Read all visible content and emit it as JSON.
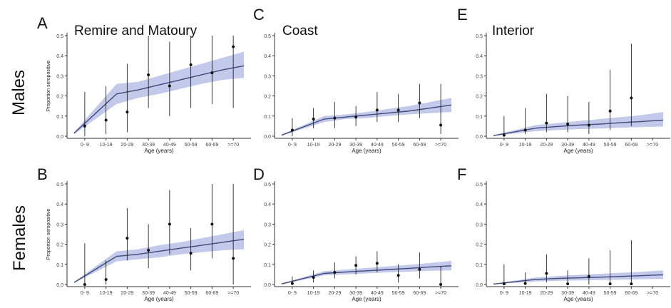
{
  "row_labels": [
    "Males",
    "Females"
  ],
  "y_axis_label": "Proportion seropositive",
  "x_axis_label": "Age (years)",
  "x_ticks": [
    "0- 9",
    "10-19",
    "20-29",
    "30-39",
    "40-49",
    "50-59",
    "60-69",
    ">=70"
  ],
  "y_ticks": [
    "0.0",
    "0.1",
    "0.2",
    "0.3",
    "0.4",
    "0.5"
  ],
  "colors": {
    "band": "#b8bfe6",
    "line": "#3f4a7a",
    "points": "#111111",
    "axis": "#333333"
  },
  "chart_data": [
    {
      "type": "line",
      "panel": "A",
      "title": "Remire and Matoury",
      "sex": "Males",
      "xlabel": "Age (years)",
      "ylabel": "Proportion seropositive",
      "ylim": [
        0,
        0.5
      ],
      "categories": [
        "0- 9",
        "10-19",
        "20-29",
        "30-39",
        "40-49",
        "50-59",
        "60-69",
        ">=70"
      ],
      "points": [
        0.05,
        0.08,
        0.12,
        0.305,
        0.25,
        0.355,
        0.315,
        0.445
      ],
      "ci_low": [
        0.0,
        0.01,
        0.02,
        0.14,
        0.1,
        0.14,
        0.16,
        0.14
      ],
      "ci_high": [
        0.22,
        0.25,
        0.36,
        0.5,
        0.47,
        0.5,
        0.5,
        0.5
      ],
      "model_x": [
        -0.5,
        1.5,
        2.5,
        3.5,
        4.5,
        5.5,
        6.5,
        7.5
      ],
      "model_y": [
        0.015,
        0.21,
        0.23,
        0.255,
        0.28,
        0.305,
        0.33,
        0.35
      ],
      "model_low": [
        0.01,
        0.16,
        0.19,
        0.21,
        0.235,
        0.26,
        0.28,
        0.29
      ],
      "model_high": [
        0.02,
        0.26,
        0.27,
        0.3,
        0.33,
        0.36,
        0.39,
        0.42
      ]
    },
    {
      "type": "line",
      "panel": "C",
      "title": "Coast",
      "sex": "Males",
      "xlabel": "Age (years)",
      "ylabel": "",
      "ylim": [
        0,
        0.5
      ],
      "categories": [
        "0- 9",
        "10-19",
        "20-29",
        "30-39",
        "40-49",
        "50-59",
        "60-69",
        ">=70"
      ],
      "points": [
        0.03,
        0.085,
        0.09,
        0.095,
        0.13,
        0.13,
        0.165,
        0.055
      ],
      "ci_low": [
        0.0,
        0.04,
        0.04,
        0.05,
        0.07,
        0.07,
        0.09,
        0.01
      ],
      "ci_high": [
        0.09,
        0.14,
        0.17,
        0.15,
        0.22,
        0.21,
        0.26,
        0.26
      ],
      "model_x": [
        -0.5,
        1.5,
        2.5,
        3.5,
        4.5,
        5.5,
        6.5,
        7.5
      ],
      "model_y": [
        0.005,
        0.085,
        0.095,
        0.105,
        0.115,
        0.125,
        0.14,
        0.155
      ],
      "model_low": [
        0.003,
        0.07,
        0.085,
        0.09,
        0.1,
        0.108,
        0.115,
        0.12
      ],
      "model_high": [
        0.008,
        0.1,
        0.108,
        0.12,
        0.135,
        0.15,
        0.17,
        0.19
      ]
    },
    {
      "type": "line",
      "panel": "E",
      "title": "Interior",
      "sex": "Males",
      "xlabel": "Age (years)",
      "ylabel": "",
      "ylim": [
        0,
        0.5
      ],
      "categories": [
        "0- 9",
        "10-19",
        "20-29",
        "30-39",
        "40-49",
        "50-59",
        "60-69",
        ">=70"
      ],
      "points": [
        0.005,
        0.03,
        0.065,
        0.06,
        0.055,
        0.125,
        0.19,
        null
      ],
      "ci_low": [
        0.0,
        0.01,
        0.02,
        0.02,
        0.01,
        0.03,
        0.05,
        null
      ],
      "ci_high": [
        0.1,
        0.14,
        0.21,
        0.2,
        0.17,
        0.33,
        0.46,
        null
      ],
      "model_x": [
        -0.5,
        1.5,
        2.5,
        3.5,
        4.5,
        5.5,
        6.5,
        7.5
      ],
      "model_y": [
        0.003,
        0.04,
        0.048,
        0.055,
        0.06,
        0.067,
        0.073,
        0.08
      ],
      "model_low": [
        0.001,
        0.025,
        0.03,
        0.035,
        0.038,
        0.042,
        0.045,
        0.048
      ],
      "model_high": [
        0.005,
        0.055,
        0.065,
        0.075,
        0.085,
        0.095,
        0.105,
        0.12
      ]
    },
    {
      "type": "line",
      "panel": "B",
      "title": "",
      "sex": "Females",
      "xlabel": "Age (years)",
      "ylabel": "Proportion seropositive",
      "ylim": [
        0,
        0.5
      ],
      "categories": [
        "0- 9",
        "10-19",
        "20-29",
        "30-39",
        "40-49",
        "50-59",
        "60-69",
        ">=70"
      ],
      "points": [
        0.0,
        0.025,
        0.23,
        0.17,
        0.3,
        0.155,
        0.3,
        0.13
      ],
      "ci_low": [
        0.0,
        0.0,
        0.12,
        0.08,
        0.15,
        0.07,
        0.13,
        0.0
      ],
      "ci_high": [
        0.205,
        0.12,
        0.38,
        0.3,
        0.47,
        0.28,
        0.5,
        0.5
      ],
      "model_x": [
        -0.5,
        1.5,
        2.5,
        3.5,
        4.5,
        5.5,
        6.5,
        7.5
      ],
      "model_y": [
        0.01,
        0.14,
        0.15,
        0.165,
        0.18,
        0.195,
        0.21,
        0.225
      ],
      "model_low": [
        0.008,
        0.115,
        0.125,
        0.135,
        0.15,
        0.16,
        0.17,
        0.175
      ],
      "model_high": [
        0.013,
        0.165,
        0.175,
        0.195,
        0.21,
        0.23,
        0.25,
        0.27
      ]
    },
    {
      "type": "line",
      "panel": "D",
      "title": "",
      "sex": "Females",
      "xlabel": "Age (years)",
      "ylabel": "",
      "ylim": [
        0,
        0.5
      ],
      "categories": [
        "0- 9",
        "10-19",
        "20-29",
        "30-39",
        "40-49",
        "50-59",
        "60-69",
        ">=70"
      ],
      "points": [
        0.005,
        0.035,
        0.06,
        0.095,
        0.105,
        0.045,
        0.075,
        0.0
      ],
      "ci_low": [
        0.0,
        0.01,
        0.03,
        0.05,
        0.06,
        0.01,
        0.03,
        0.0
      ],
      "ci_high": [
        0.04,
        0.07,
        0.11,
        0.14,
        0.165,
        0.1,
        0.16,
        0.09
      ],
      "model_x": [
        -0.5,
        1.5,
        2.5,
        3.5,
        4.5,
        5.5,
        6.5,
        7.5
      ],
      "model_y": [
        0.003,
        0.055,
        0.062,
        0.068,
        0.074,
        0.08,
        0.087,
        0.093
      ],
      "model_low": [
        0.001,
        0.045,
        0.05,
        0.055,
        0.06,
        0.064,
        0.068,
        0.07
      ],
      "model_high": [
        0.005,
        0.066,
        0.074,
        0.082,
        0.09,
        0.098,
        0.107,
        0.118
      ]
    },
    {
      "type": "line",
      "panel": "F",
      "title": "",
      "sex": "Females",
      "xlabel": "Age (years)",
      "ylabel": "",
      "ylim": [
        0,
        0.5
      ],
      "categories": [
        "0- 9",
        "10-19",
        "20-29",
        "30-39",
        "40-49",
        "50-59",
        "60-69",
        ">=70"
      ],
      "points": [
        0.003,
        0.005,
        0.055,
        0.003,
        0.04,
        0.003,
        0.003,
        null
      ],
      "ci_low": [
        0.0,
        0.0,
        0.01,
        0.0,
        0.0,
        0.0,
        0.0,
        null
      ],
      "ci_high": [
        0.1,
        0.06,
        0.15,
        0.07,
        0.13,
        0.17,
        0.22,
        null
      ],
      "model_x": [
        -0.5,
        1.5,
        2.5,
        3.5,
        4.5,
        5.5,
        6.5,
        7.5
      ],
      "model_y": [
        0.002,
        0.025,
        0.03,
        0.033,
        0.036,
        0.04,
        0.044,
        0.048
      ],
      "model_low": [
        0.001,
        0.015,
        0.018,
        0.02,
        0.022,
        0.024,
        0.026,
        0.028
      ],
      "model_high": [
        0.003,
        0.035,
        0.042,
        0.048,
        0.053,
        0.058,
        0.063,
        0.07
      ]
    }
  ]
}
